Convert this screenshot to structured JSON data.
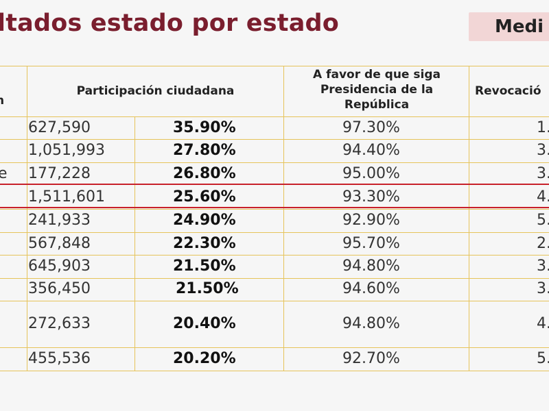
{
  "title": "ltados estado por estado",
  "badge": "Medi",
  "headers": {
    "col0": "n",
    "participacion": "Participación ciudadana",
    "a_favor": "A favor de que siga Presidencia de la República",
    "revocacion": "Revocació"
  },
  "rows": [
    {
      "left": "",
      "votes": "627,590",
      "pct": "35.90%",
      "favor": "97.30%",
      "rev": "1."
    },
    {
      "left": "",
      "votes": "1,051,993",
      "pct": "27.80%",
      "favor": "94.40%",
      "rev": "3."
    },
    {
      "left": "e",
      "votes": "177,228",
      "pct": "26.80%",
      "favor": "95.00%",
      "rev": "3."
    },
    {
      "left": "",
      "votes": "1,511,601",
      "pct": "25.60%",
      "favor": "93.30%",
      "rev": "4."
    },
    {
      "left": "",
      "votes": "241,933",
      "pct": "24.90%",
      "favor": "92.90%",
      "rev": "5."
    },
    {
      "left": "",
      "votes": "567,848",
      "pct": "22.30%",
      "favor": "95.70%",
      "rev": "2."
    },
    {
      "left": "",
      "votes": "645,903",
      "pct": "21.50%",
      "favor": "94.80%",
      "rev": "3."
    },
    {
      "left": "",
      "votes": "356,450",
      "pct": "21.50%",
      "favor": "94.60%",
      "rev": "3."
    },
    {
      "left": "",
      "votes": "272,633",
      "pct": "20.40%",
      "favor": "94.80%",
      "rev": "4."
    },
    {
      "left": "",
      "votes": "455,536",
      "pct": "20.20%",
      "favor": "92.70%",
      "rev": "5."
    }
  ],
  "colors": {
    "title": "#7a1e2e",
    "badge_bg": "#f2d6d6",
    "grid": "#e6c35a",
    "highlight": "#c8202a"
  }
}
